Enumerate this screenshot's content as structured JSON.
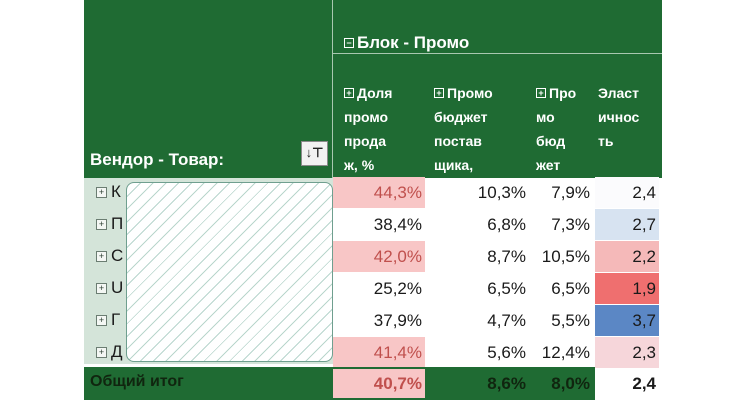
{
  "pivot": {
    "block_title": "Блок - Промо",
    "row_field_label": "Вендор - Товар:",
    "filter_icon": "filter-sort-icon",
    "columns": [
      {
        "label": "Доля\nпромо\nпрода\nж, %",
        "has_icon": true
      },
      {
        "label": "Промо\nбюджет\nпостав\nщика,\n%",
        "has_icon": true
      },
      {
        "label": "Про\nмо\nбюд\nжет\nот",
        "has_icon": true
      },
      {
        "label": "Эласт\nичнос\nть",
        "has_icon": false
      }
    ],
    "rows": [
      {
        "label_visible": "К",
        "values": [
          "44,3%",
          "10,3%",
          "7,9%",
          "2,4"
        ]
      },
      {
        "label_visible": "П",
        "values": [
          "38,4%",
          "6,8%",
          "7,3%",
          "2,7"
        ]
      },
      {
        "label_visible": "С",
        "values": [
          "42,0%",
          "8,7%",
          "10,5%",
          "2,2"
        ]
      },
      {
        "label_visible": "U",
        "values": [
          "25,2%",
          "6,5%",
          "6,5%",
          "1,9"
        ]
      },
      {
        "label_visible": "Г",
        "values": [
          "37,9%",
          "4,7%",
          "5,5%",
          "3,7"
        ]
      },
      {
        "label_visible": "Д",
        "values": [
          "41,4%",
          "5,6%",
          "12,4%",
          "2,3"
        ]
      }
    ],
    "total": {
      "label": "Общий итог",
      "values": [
        "40,7%",
        "8,6%",
        "8,0%",
        "2,4"
      ]
    },
    "colors": {
      "header_green": "#1f6b33",
      "highlight_pink": "#f8c6c6",
      "elasticity_low_red": "#ef6f6f",
      "elasticity_high_blue": "#5b87c5"
    }
  }
}
